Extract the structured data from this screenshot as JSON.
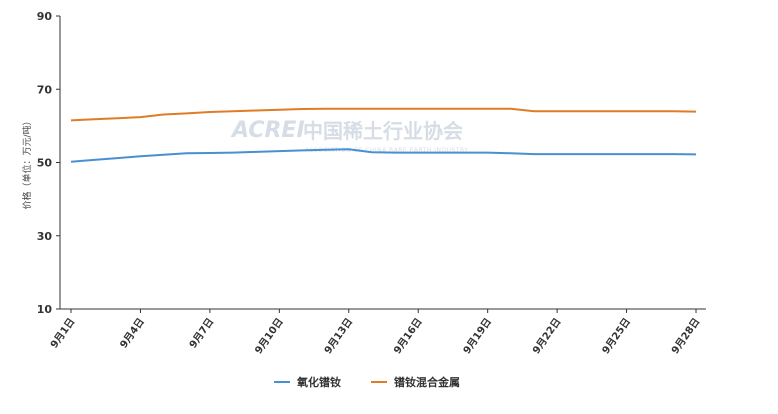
{
  "chart_data": {
    "type": "line",
    "ylabel": "价格（单位：万元/吨）",
    "ylim": [
      10,
      90
    ],
    "yticks": [
      10,
      30,
      50,
      70,
      90
    ],
    "x": [
      "9月1日",
      "9月2日",
      "9月3日",
      "9月4日",
      "9月5日",
      "9月6日",
      "9月7日",
      "9月8日",
      "9月9日",
      "9月10日",
      "9月11日",
      "9月12日",
      "9月13日",
      "9月14日",
      "9月15日",
      "9月16日",
      "9月17日",
      "9月18日",
      "9月19日",
      "9月20日",
      "9月21日",
      "9月22日",
      "9月23日",
      "9月24日",
      "9月25日",
      "9月26日",
      "9月27日",
      "9月28日"
    ],
    "xtick_labels": [
      "9月1日",
      "9月4日",
      "9月7日",
      "9月10日",
      "9月13日",
      "9月16日",
      "9月19日",
      "9月22日",
      "9月25日",
      "9月28日"
    ],
    "series": [
      {
        "name": "氧化镨钕",
        "color": "#4a8fd0",
        "values": [
          50.2,
          50.7,
          51.2,
          51.7,
          52.1,
          52.5,
          52.6,
          52.7,
          52.9,
          53.1,
          53.3,
          53.5,
          53.6,
          52.8,
          52.7,
          52.7,
          52.7,
          52.7,
          52.7,
          52.5,
          52.3,
          52.3,
          52.3,
          52.3,
          52.3,
          52.3,
          52.3,
          52.2
        ]
      },
      {
        "name": "镨钕混合金属",
        "color": "#e07b26",
        "values": [
          61.5,
          61.8,
          62.1,
          62.4,
          63.1,
          63.4,
          63.8,
          64.0,
          64.2,
          64.4,
          64.6,
          64.7,
          64.7,
          64.7,
          64.7,
          64.7,
          64.7,
          64.7,
          64.7,
          64.7,
          64.0,
          64.0,
          64.0,
          64.0,
          64.0,
          64.0,
          64.0,
          63.9
        ]
      }
    ],
    "legend_position": "bottom",
    "grid": false
  },
  "watermark": {
    "logo": "ACREI",
    "org_cn": "中国稀土行业协会",
    "org_en": "ASSOCIATION OF CHINA RARE EARTH INDUSTRY"
  }
}
